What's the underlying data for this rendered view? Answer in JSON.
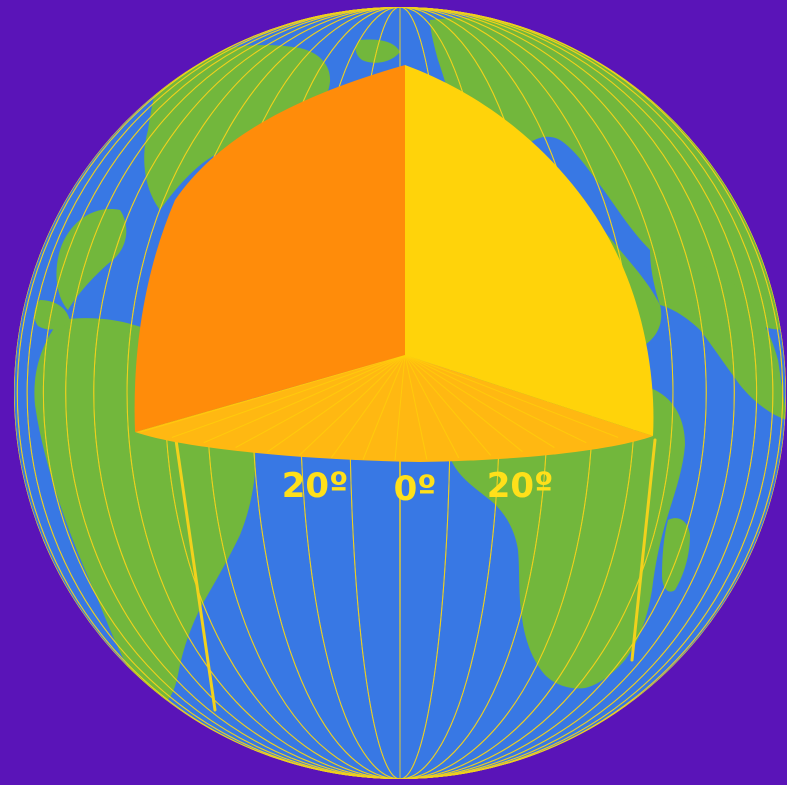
{
  "colors": {
    "background": "#5a14b8",
    "ocean": "#3878e4",
    "land": "#72b73c",
    "meridian": "#f2d11c",
    "wedge_left": "#ff8c0a",
    "wedge_right": "#ffd30a",
    "wedge_bottom": "#ffb812",
    "label": "#ffe01a"
  },
  "labels": {
    "left": "20º",
    "center": "0º",
    "right": "20º"
  }
}
